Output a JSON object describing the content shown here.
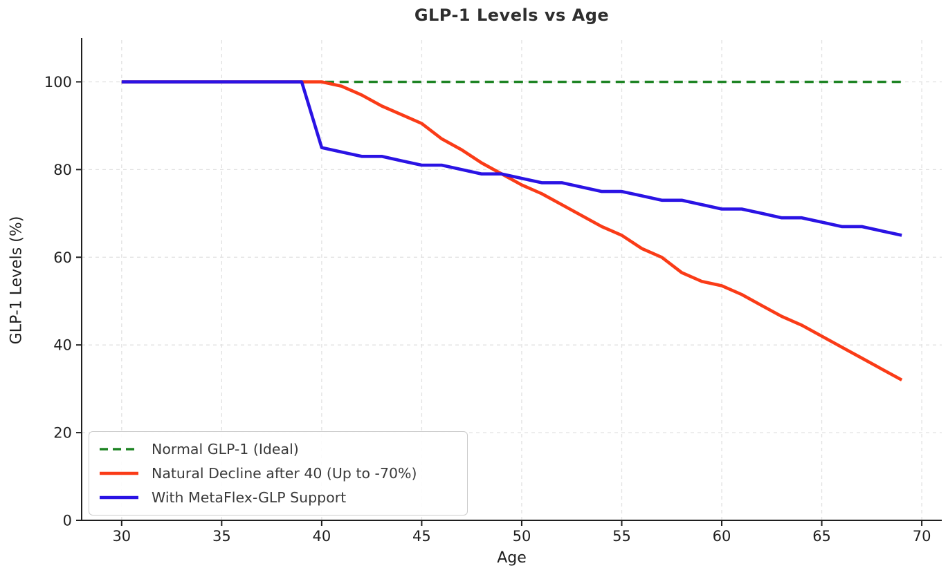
{
  "chart_data": {
    "type": "line",
    "title": "GLP-1 Levels vs Age",
    "xlabel": "Age",
    "ylabel": "GLP-1 Levels (%)",
    "xlim": [
      28,
      71
    ],
    "ylim": [
      0,
      110
    ],
    "xticks": [
      30,
      35,
      40,
      45,
      50,
      55,
      60,
      65,
      70
    ],
    "yticks": [
      0,
      20,
      40,
      60,
      80,
      100
    ],
    "grid": "dashed light gray, both axes",
    "legend_position": "lower left",
    "x": [
      30,
      31,
      32,
      33,
      34,
      35,
      36,
      37,
      38,
      39,
      40,
      41,
      42,
      43,
      44,
      45,
      46,
      47,
      48,
      49,
      50,
      51,
      52,
      53,
      54,
      55,
      56,
      57,
      58,
      59,
      60,
      61,
      62,
      63,
      64,
      65,
      66,
      67,
      68,
      69
    ],
    "series": [
      {
        "name": "Normal GLP-1 (Ideal)",
        "color": "#1e8424",
        "style": "dashed",
        "values": [
          100,
          100,
          100,
          100,
          100,
          100,
          100,
          100,
          100,
          100,
          100,
          100,
          100,
          100,
          100,
          100,
          100,
          100,
          100,
          100,
          100,
          100,
          100,
          100,
          100,
          100,
          100,
          100,
          100,
          100,
          100,
          100,
          100,
          100,
          100,
          100,
          100,
          100,
          100,
          100
        ]
      },
      {
        "name": "Natural Decline after 40 (Up to -70%)",
        "color": "#fa3b17",
        "style": "solid",
        "values": [
          100,
          100,
          100,
          100,
          100,
          100,
          100,
          100,
          100,
          100,
          100,
          99,
          97,
          94.5,
          92.5,
          90.5,
          87,
          84.5,
          81.5,
          79,
          76.5,
          74.5,
          72,
          69.5,
          67,
          65,
          62,
          60,
          56.5,
          54.5,
          53.5,
          51.5,
          49,
          46.5,
          44.5,
          42,
          39.5,
          37,
          34.5,
          32
        ]
      },
      {
        "name": "With MetaFlex-GLP Support",
        "color": "#2a13e4",
        "style": "solid",
        "values": [
          100,
          100,
          100,
          100,
          100,
          100,
          100,
          100,
          100,
          100,
          85,
          84,
          83,
          83,
          82,
          81,
          81,
          80,
          79,
          79,
          78,
          77,
          77,
          76,
          75,
          75,
          74,
          73,
          73,
          72,
          71,
          71,
          70,
          69,
          69,
          68,
          67,
          67,
          66,
          65
        ]
      }
    ]
  }
}
